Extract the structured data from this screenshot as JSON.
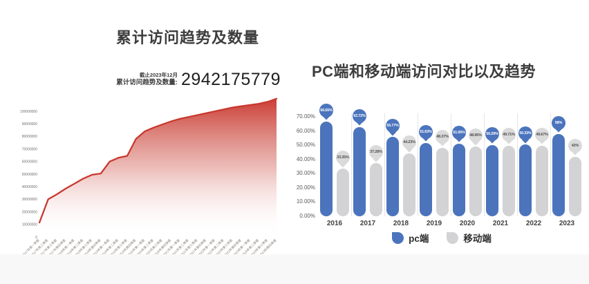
{
  "page": {
    "background": "#ffffff",
    "bottom_band_color": "#f8f8f8"
  },
  "chart_data": [
    {
      "type": "area",
      "title": "累计访问趋势及数量",
      "annotation": {
        "asof": "截止2023年12月",
        "label": "累计访问趋势及数量:",
        "value": "2942175779"
      },
      "x": [
        "2017年第一季度",
        "2017年第二季度",
        "2017年第三季度",
        "2017年第四季度",
        "2018年第一季度",
        "2018年第二季度",
        "2018年第三季度",
        "2018年第四季度",
        "2019年第一季度",
        "2019年第二季度",
        "2019年第三季度",
        "2019年第四季度",
        "2020年第一季度",
        "2020年第二季度",
        "2020年第三季度",
        "2020年第四季度",
        "2021年第一季度",
        "2021年第二季度",
        "2021年第三季度",
        "2021年第四季度",
        "2022年第一季度",
        "2022年第二季度",
        "2022年第三季度",
        "2022年第四季度",
        "2023年第一季度",
        "2023年第二季度",
        "2023年第三季度",
        "2023年第四季度"
      ],
      "values": [
        11500000,
        30000000,
        34000000,
        38500000,
        42500000,
        46500000,
        49500000,
        50500000,
        60000000,
        63000000,
        64500000,
        78000000,
        84000000,
        87000000,
        89500000,
        92000000,
        94000000,
        95500000,
        97000000,
        98500000,
        100000000,
        101500000,
        103000000,
        104000000,
        105000000,
        106000000,
        107500000,
        110000000
      ],
      "yticks": [
        0,
        10000000,
        20000000,
        30000000,
        40000000,
        50000000,
        60000000,
        70000000,
        80000000,
        90000000,
        100000000
      ],
      "ylim": [
        0,
        110000000
      ],
      "xlabel": "",
      "ylabel": "",
      "grid": false,
      "legend": "none",
      "line_color": "#c9382e",
      "fill": "vertical gradient red to white",
      "tick_color": "#6e6e6e",
      "xlabel_color": "#8b7f76"
    },
    {
      "type": "bar",
      "title": "PC端和移动端访问对比以及趋势",
      "categories": [
        "2016",
        "2017",
        "2018",
        "2019",
        "2020",
        "2021",
        "2022",
        "2023"
      ],
      "series": [
        {
          "name": "pc端",
          "color": "#4b74bd",
          "balloon_color": "#4b74bd",
          "balloon_text_color": "#ffffff",
          "values": [
            66.65,
            62.72,
            55.77,
            51.63,
            51.05,
            50.29,
            50.33,
            58
          ],
          "labels": [
            "66.65%",
            "62.72%",
            "55.77%",
            "51.63%",
            "51.05%",
            "50.29%",
            "50.33%",
            "58%"
          ]
        },
        {
          "name": "移动端",
          "color": "#d3d3d5",
          "balloon_color": "#dadada",
          "balloon_text_color": "#4f4f4f",
          "values": [
            33.35,
            37.28,
            44.23,
            48.37,
            48.95,
            49.71,
            49.67,
            42
          ],
          "labels": [
            "33.35%",
            "37.28%",
            "44.23%",
            "48.37%",
            "48.95%",
            "49.71%",
            "49.67%",
            "42%"
          ]
        }
      ],
      "yticks": [
        "0.00%",
        "10.00%",
        "20.00%",
        "30.00%",
        "40.00%",
        "50.00%",
        "60.00%",
        "70.00%"
      ],
      "ylim": [
        0,
        70
      ],
      "grid": false,
      "legend_position": "bottom",
      "separator_color": "#e5e5e7"
    }
  ]
}
